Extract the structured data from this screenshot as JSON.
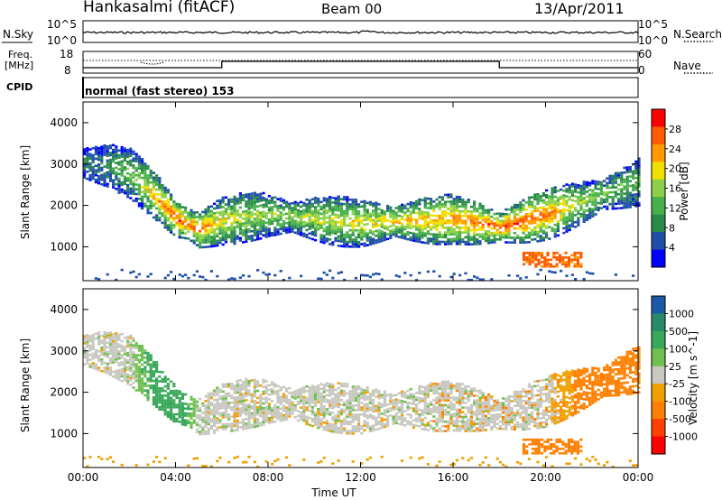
{
  "header": {
    "station": "Hankasalmi (fitACF)",
    "beam": "Beam 00",
    "date": "13/Apr/2011"
  },
  "top_panels": {
    "nsky_label": "N.Sky",
    "nsky_ticks": [
      "10^5",
      "10^0"
    ],
    "nsearch_label": "N.Search",
    "nsearch_ticks": [
      "10^5",
      "10^0"
    ],
    "freq_label_1": "Freq.",
    "freq_label_2": "[MHz]",
    "freq_ticks": [
      "18",
      "8"
    ],
    "nave_label": "Nave",
    "nave_ticks": [
      "60",
      "0"
    ],
    "cpid_label": "CPID",
    "mode_text": "normal (fast stereo) 153"
  },
  "colors": {
    "power_scale": [
      "#0000ff",
      "#1f4fa8",
      "#2a8a4a",
      "#48b04a",
      "#8cd04a",
      "#f0e000",
      "#ff9a00",
      "#ff5a00",
      "#ff0000"
    ],
    "velocity_scale": [
      "#1c5aa8",
      "#2a8a6a",
      "#3aa85a",
      "#70c050",
      "#c8c8c0",
      "#f0a000",
      "#ff8000",
      "#ff4000",
      "#ff0000"
    ],
    "ground_scatter": "#c8c8c0"
  },
  "chart_data": [
    {
      "type": "heatmap",
      "title": "Power",
      "xlabel": "Time UT",
      "ylabel": "Slant Range [km]",
      "x_range": [
        "00:00",
        "00:00"
      ],
      "ylim": [
        180,
        4500
      ],
      "x_ticks": [
        "00:00",
        "04:00",
        "08:00",
        "12:00",
        "16:00",
        "20:00",
        "00:00"
      ],
      "y_ticks": [
        "1000",
        "2000",
        "3000",
        "4000"
      ],
      "colorbar_label": "Power [dB]",
      "colorbar_ticks": [
        "4",
        "8",
        "12",
        "16",
        "20",
        "24",
        "28"
      ],
      "scatter_band": {
        "time_h": [
          0,
          1,
          2,
          3,
          4,
          5,
          6,
          7,
          8,
          10,
          12,
          14,
          16,
          17,
          18,
          19,
          20,
          21,
          22,
          23,
          24
        ],
        "center_range_km": [
          3050,
          3000,
          2800,
          2300,
          1700,
          1450,
          1650,
          1750,
          1800,
          1700,
          1600,
          1650,
          1700,
          1600,
          1500,
          1650,
          1800,
          2000,
          2200,
          2400,
          2600
        ],
        "peak_power_db": [
          8,
          10,
          14,
          22,
          28,
          26,
          20,
          18,
          16,
          18,
          20,
          22,
          24,
          26,
          28,
          28,
          26,
          20,
          16,
          14,
          12
        ]
      },
      "lower_patch": {
        "time_h": [
          19,
          21.5
        ],
        "range_km": [
          550,
          900
        ],
        "power_db": 28
      }
    },
    {
      "type": "heatmap",
      "title": "Velocity",
      "xlabel": "Time UT",
      "ylabel": "Slant Range [km]",
      "x_range": [
        "00:00",
        "00:00"
      ],
      "ylim": [
        180,
        4500
      ],
      "x_ticks": [
        "00:00",
        "04:00",
        "08:00",
        "12:00",
        "16:00",
        "20:00",
        "00:00"
      ],
      "y_ticks": [
        "1000",
        "2000",
        "3000",
        "4000"
      ],
      "colorbar_label": "Velocity [m s^-1]",
      "colorbar_ticks": [
        "1000",
        "500",
        "100",
        "25",
        "-25",
        "-100",
        "-500",
        "-1000"
      ],
      "scatter_band": {
        "time_h": [
          0,
          1,
          2,
          3,
          4,
          5,
          6,
          7,
          8,
          10,
          12,
          14,
          16,
          17,
          18,
          19,
          20,
          21,
          22,
          23,
          24
        ],
        "center_range_km": [
          3050,
          3000,
          2800,
          2300,
          1700,
          1450,
          1650,
          1750,
          1800,
          1700,
          1600,
          1650,
          1700,
          1600,
          1500,
          1650,
          1800,
          2000,
          2200,
          2400,
          2600
        ],
        "velocity_ms": [
          0,
          0,
          0,
          150,
          200,
          0,
          0,
          0,
          0,
          0,
          0,
          0,
          0,
          0,
          0,
          0,
          0,
          -80,
          -300,
          -200,
          -100
        ]
      },
      "lower_patch": {
        "time_h": [
          19,
          21.5
        ],
        "range_km": [
          550,
          900
        ],
        "velocity_ms": -150
      }
    }
  ]
}
